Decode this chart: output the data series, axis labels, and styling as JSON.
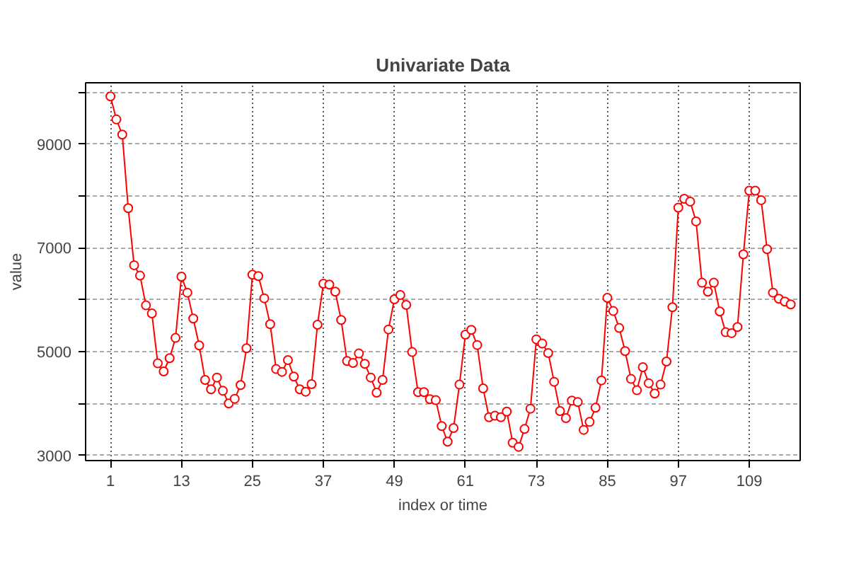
{
  "chart_data": {
    "type": "line",
    "title": "Univariate Data",
    "xlabel": "index or time",
    "ylabel": "value",
    "x": [
      1,
      2,
      3,
      4,
      5,
      6,
      7,
      8,
      9,
      10,
      11,
      12,
      13,
      14,
      15,
      16,
      17,
      18,
      19,
      20,
      21,
      22,
      23,
      24,
      25,
      26,
      27,
      28,
      29,
      30,
      31,
      32,
      33,
      34,
      35,
      36,
      37,
      38,
      39,
      40,
      41,
      42,
      43,
      44,
      45,
      46,
      47,
      48,
      49,
      50,
      51,
      52,
      53,
      54,
      55,
      56,
      57,
      58,
      59,
      60,
      61,
      62,
      63,
      64,
      65,
      66,
      67,
      68,
      69,
      70,
      71,
      72,
      73,
      74,
      75,
      76,
      77,
      78,
      79,
      80,
      81,
      82,
      83,
      84,
      85,
      86,
      87,
      88,
      89,
      90,
      91,
      92,
      93,
      94,
      95,
      96,
      97,
      98,
      99,
      100,
      101,
      102,
      103,
      104,
      105,
      106,
      107,
      108,
      109,
      110,
      111,
      112,
      113,
      114,
      115,
      116
    ],
    "series": [
      {
        "color": "#ff0000",
        "values": [
          9918,
          9473,
          9182,
          7764,
          6664,
          6464,
          5891,
          5736,
          4773,
          4618,
          4873,
          5264,
          6445,
          6136,
          5636,
          5118,
          4455,
          4273,
          4500,
          4245,
          4000,
          4091,
          4355,
          5064,
          6482,
          6455,
          6027,
          5527,
          4664,
          4609,
          4836,
          4518,
          4273,
          4227,
          4373,
          5518,
          6309,
          6291,
          6155,
          5609,
          4818,
          4782,
          4964,
          4764,
          4500,
          4209,
          4455,
          5427,
          6009,
          6091,
          5900,
          4991,
          4218,
          4218,
          4082,
          4064,
          3564,
          3264,
          3527,
          4364,
          5327,
          5418,
          5127,
          4291,
          3736,
          3764,
          3736,
          3845,
          3245,
          3164,
          3509,
          3900,
          5236,
          5155,
          4973,
          4418,
          3855,
          3718,
          4055,
          4027,
          3491,
          3645,
          3918,
          4445,
          6036,
          5782,
          5455,
          5009,
          4473,
          4255,
          4700,
          4391,
          4191,
          4364,
          4809,
          5855,
          7773,
          7945,
          7891,
          7509,
          6327,
          6155,
          6327,
          5773,
          5373,
          5355,
          5473,
          6873,
          8100,
          8100,
          7918,
          6973,
          6136,
          6018,
          5964,
          5909
        ]
      }
    ],
    "xlim": [
      -3.2,
      117.6
    ],
    "ylim": [
      2900,
      10180
    ],
    "xticks": [
      1,
      13,
      25,
      37,
      49,
      61,
      73,
      85,
      97,
      109
    ],
    "yticks": [
      3000,
      {
        "value": 4000,
        "label": null
      },
      5000,
      {
        "value": 6000,
        "label": null
      },
      7000,
      {
        "value": 8000,
        "label": null
      },
      9000,
      {
        "value": 10000,
        "label": null
      }
    ],
    "grid": true,
    "marker": "circle",
    "line_style": "solid"
  }
}
